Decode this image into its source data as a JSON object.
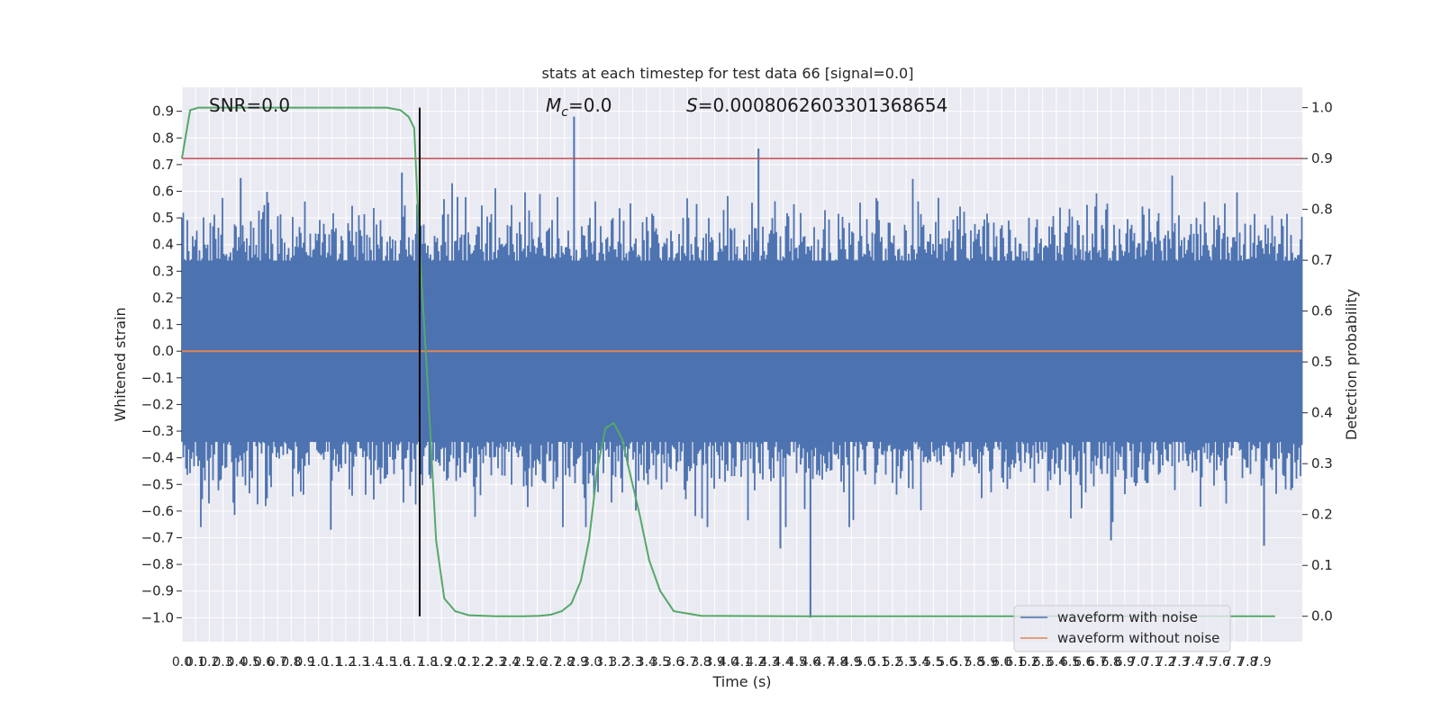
{
  "chart_data": {
    "type": "line",
    "title": "stats at each timestep for test data 66 [signal=0.0]",
    "xlabel": "Time (s)",
    "ylabel": "Whitened strain",
    "ylabel_right": "Detection probability",
    "xlim": [
      0.0,
      8.2
    ],
    "ylim": [
      -1.09,
      0.99
    ],
    "ylim_right": [
      -0.05,
      1.04
    ],
    "y_ticks": [
      0.9,
      0.8,
      0.7,
      0.6,
      0.5,
      0.4,
      0.3,
      0.2,
      0.1,
      0.0,
      -0.1,
      -0.2,
      -0.3,
      -0.4,
      -0.5,
      -0.6,
      -0.7,
      -0.8,
      -0.9,
      -1.0
    ],
    "y_tick_labels": [
      "0.9",
      "0.8",
      "0.7",
      "0.6",
      "0.5",
      "0.4",
      "0.3",
      "0.2",
      "0.1",
      "0.0",
      "−0.1",
      "−0.2",
      "−0.3",
      "−0.4",
      "−0.5",
      "−0.6",
      "−0.7",
      "−0.8",
      "−0.9",
      "−1.0"
    ],
    "y_right_ticks": [
      1.0,
      0.9,
      0.8,
      0.7,
      0.6,
      0.5,
      0.4,
      0.3,
      0.2,
      0.1,
      0.0
    ],
    "y_right_tick_labels": [
      "1.0",
      "0.9",
      "0.8",
      "0.7",
      "0.6",
      "0.5",
      "0.4",
      "0.3",
      "0.2",
      "0.1",
      "0.0"
    ],
    "x_ticks": [
      0.0,
      0.1,
      0.2,
      0.3,
      0.4,
      0.5,
      0.6,
      0.7,
      0.8,
      0.9,
      1.0,
      1.1,
      1.2,
      1.3,
      1.4,
      1.5,
      1.6,
      1.7,
      1.8,
      1.9,
      2.0,
      2.1,
      2.2,
      2.3,
      2.4,
      2.5,
      2.6,
      2.7,
      2.8,
      2.9,
      3.0,
      3.1,
      3.2,
      3.3,
      3.4,
      3.5,
      3.6,
      3.7,
      3.8,
      3.9,
      4.0,
      4.1,
      4.2,
      4.3,
      4.4,
      4.5,
      4.6,
      4.7,
      4.8,
      4.9,
      5.0,
      5.1,
      5.2,
      5.3,
      5.4,
      5.5,
      5.6,
      5.7,
      5.8,
      5.9,
      6.0,
      6.1,
      6.2,
      6.3,
      6.4,
      6.5,
      6.6,
      6.7,
      6.8,
      6.9,
      7.0,
      7.1,
      7.2,
      7.3,
      7.4,
      7.5,
      7.6,
      7.7,
      7.8,
      7.9
    ],
    "x_tick_labels": [
      "0.0",
      "0.1",
      "0.2",
      "0.3",
      "0.4",
      "0.5",
      "0.6",
      "0.7",
      "0.8",
      "0.9",
      "1.0",
      "1.1",
      "1.2",
      "1.3",
      "1.4",
      "1.5",
      "1.6",
      "1.7",
      "1.8",
      "1.9",
      "2.0",
      "2.1",
      "2.2",
      "2.3",
      "2.4",
      "2.5",
      "2.6",
      "2.7",
      "2.8",
      "2.9",
      "3.0",
      "3.1",
      "3.2",
      "3.3",
      "3.4",
      "3.5",
      "3.6",
      "3.7",
      "3.8",
      "3.9",
      "4.0",
      "4.1",
      "4.2",
      "4.3",
      "4.4",
      "4.5",
      "4.6",
      "4.7",
      "4.8",
      "4.9",
      "5.0",
      "5.1",
      "5.2",
      "5.3",
      "5.4",
      "5.5",
      "5.6",
      "5.7",
      "5.8",
      "5.9",
      "6.0",
      "6.1",
      "6.2",
      "6.3",
      "6.4",
      "6.5",
      "6.6",
      "6.7",
      "6.8",
      "6.9",
      "7.0",
      "7.1",
      "7.2",
      "7.3",
      "7.4",
      "7.5",
      "7.6",
      "7.7",
      "7.8",
      "7.9"
    ],
    "grid": true,
    "legend_position": "lower-right",
    "annotations": {
      "snr": "SNR=0.0",
      "mc_symbol": "M",
      "mc_subscript": "c",
      "mc_value": "=0.0",
      "s_symbol": "S",
      "s_value": "=0.0008062603301368654"
    },
    "series": [
      {
        "name": "waveform with noise",
        "axis": "left",
        "color": "#4c72b0",
        "kind": "noise",
        "envelope_upper": 0.34,
        "envelope_lower": -0.34,
        "peaks": [
          {
            "x": 2.87,
            "y": 0.88
          },
          {
            "x": 4.22,
            "y": 0.76
          },
          {
            "x": 1.61,
            "y": 0.67
          },
          {
            "x": 0.43,
            "y": 0.65
          },
          {
            "x": 4.6,
            "y": -1.0
          },
          {
            "x": 4.38,
            "y": -0.74
          },
          {
            "x": 1.09,
            "y": -0.67
          },
          {
            "x": 7.92,
            "y": -0.73
          },
          {
            "x": 6.8,
            "y": -0.71
          }
        ]
      },
      {
        "name": "waveform without noise",
        "axis": "left",
        "color": "#dd8452",
        "x": [
          0.0,
          8.2
        ],
        "y": [
          0.0,
          0.0
        ]
      },
      {
        "axis": "right",
        "color": "#55a868",
        "x": [
          0.0,
          0.06,
          0.12,
          0.2,
          0.4,
          0.8,
          1.2,
          1.5,
          1.6,
          1.66,
          1.7,
          1.74,
          1.8,
          1.86,
          1.92,
          2.0,
          2.1,
          2.3,
          2.5,
          2.62,
          2.7,
          2.78,
          2.85,
          2.92,
          2.98,
          3.04,
          3.1,
          3.16,
          3.22,
          3.28,
          3.35,
          3.42,
          3.5,
          3.6,
          3.8,
          4.5,
          6.0,
          8.0
        ],
        "y": [
          0.9,
          0.995,
          1.0,
          1.0,
          1.0,
          1.0,
          1.0,
          1.0,
          0.995,
          0.982,
          0.96,
          0.72,
          0.45,
          0.15,
          0.035,
          0.01,
          0.002,
          0.0,
          0.0,
          0.001,
          0.003,
          0.01,
          0.025,
          0.07,
          0.15,
          0.29,
          0.37,
          0.38,
          0.35,
          0.28,
          0.2,
          0.11,
          0.05,
          0.01,
          0.001,
          0.0,
          0.0,
          0.0
        ]
      }
    ],
    "reference_lines": {
      "threshold": {
        "axis": "right",
        "value": 0.9,
        "color": "#c44e52"
      },
      "vertical": {
        "x": 1.74,
        "ymin_right": 0.0,
        "ymax_right": 1.0,
        "color": "#000000"
      }
    }
  }
}
